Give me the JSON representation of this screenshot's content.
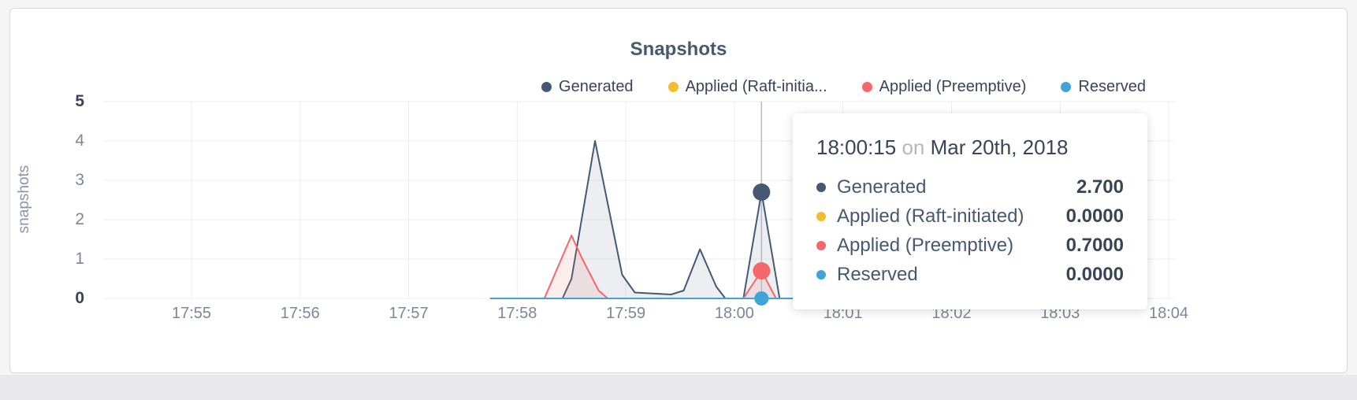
{
  "title": "Snapshots",
  "ylabel": "snapshots",
  "legend": {
    "items": [
      {
        "label": "Generated",
        "color": "#475872"
      },
      {
        "label": "Applied (Raft-initia...",
        "color": "#f1be30"
      },
      {
        "label": "Applied (Preemptive)",
        "color": "#f2686b"
      },
      {
        "label": "Reserved",
        "color": "#41a4d8"
      }
    ]
  },
  "tooltip": {
    "time": "18:00:15",
    "on_word": "on",
    "date": "Mar 20th, 2018",
    "rows": [
      {
        "label": "Generated",
        "value": "2.700",
        "color": "#475872"
      },
      {
        "label": "Applied (Raft-initiated)",
        "value": "0.0000",
        "color": "#f1be30"
      },
      {
        "label": "Applied (Preemptive)",
        "value": "0.7000",
        "color": "#f2686b"
      },
      {
        "label": "Reserved",
        "value": "0.0000",
        "color": "#41a4d8"
      }
    ]
  },
  "chart_data": {
    "type": "area",
    "title": "Snapshots",
    "ylabel": "snapshots",
    "x_ticks": [
      "17:55",
      "17:56",
      "17:57",
      "17:58",
      "17:59",
      "18:00",
      "18:01",
      "18:02",
      "18:03",
      "18:04"
    ],
    "x_tick_interval_seconds": 60,
    "x_domain_seconds": [
      0,
      540
    ],
    "y_ticks": [
      0,
      1,
      2,
      3,
      4,
      5
    ],
    "ylim": [
      0,
      5
    ],
    "grid": true,
    "legend_position": "top-right",
    "series": [
      {
        "name": "Generated",
        "color": "#475872",
        "fill": "rgba(71,88,114,0.10)",
        "points": [
          [
            165,
            0
          ],
          [
            205,
            0
          ],
          [
            210,
            0.5
          ],
          [
            223,
            4.0
          ],
          [
            238,
            0.6
          ],
          [
            245,
            0.15
          ],
          [
            265,
            0.1
          ],
          [
            272,
            0.2
          ],
          [
            281,
            1.25
          ],
          [
            290,
            0.3
          ],
          [
            295,
            0
          ],
          [
            305,
            0
          ],
          [
            315,
            2.7
          ],
          [
            325,
            0
          ],
          [
            335,
            0
          ]
        ]
      },
      {
        "name": "Applied (Raft-initiated)",
        "color": "#f1be30",
        "fill": null,
        "points": [
          [
            165,
            0
          ],
          [
            335,
            0
          ]
        ]
      },
      {
        "name": "Applied (Preemptive)",
        "color": "#f2686b",
        "fill": "rgba(242,104,107,0.12)",
        "points": [
          [
            165,
            0
          ],
          [
            195,
            0
          ],
          [
            210,
            1.6
          ],
          [
            216,
            1.0
          ],
          [
            225,
            0.2
          ],
          [
            230,
            0
          ],
          [
            305,
            0
          ],
          [
            315,
            0.7
          ],
          [
            323,
            0
          ],
          [
            335,
            0
          ]
        ]
      },
      {
        "name": "Reserved",
        "color": "#41a4d8",
        "fill": null,
        "points": [
          [
            165,
            0
          ],
          [
            335,
            0
          ]
        ]
      }
    ],
    "crosshair": {
      "x_seconds": 315,
      "time_label": "18:00:15",
      "points": [
        {
          "series": "Generated",
          "value": 2.7,
          "r": 11
        },
        {
          "series": "Applied (Preemptive)",
          "value": 0.7,
          "r": 11
        },
        {
          "series": "Reserved",
          "value": 0,
          "r": 9
        }
      ]
    }
  }
}
